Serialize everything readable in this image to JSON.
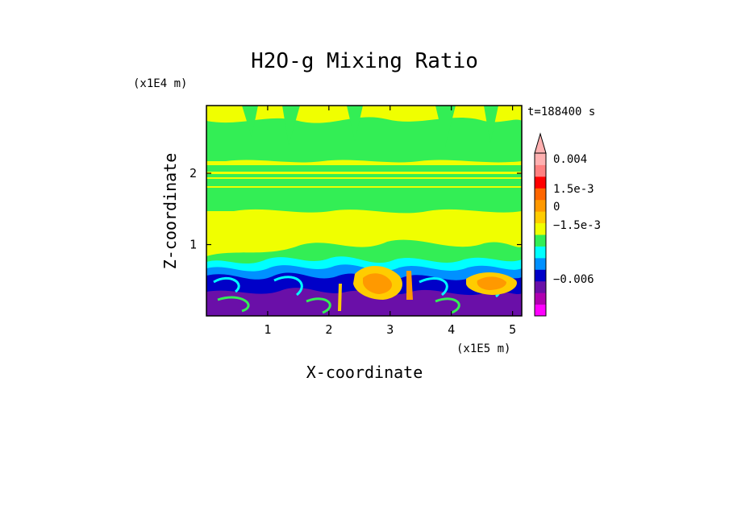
{
  "chart_data": {
    "type": "heatmap",
    "title": "H2O-g Mixing Ratio",
    "xlabel": "X-coordinate",
    "ylabel": "Z-coordinate",
    "x_scale_label": "(x1E5 m)",
    "y_scale_label": "(x1E4 m)",
    "time_label": "t=188400 s",
    "xlim": [
      0,
      5.15
    ],
    "ylim": [
      0,
      2.95
    ],
    "x_ticks": [
      1,
      2,
      3,
      4,
      5
    ],
    "y_ticks": [
      1,
      2
    ],
    "colorbar": {
      "tick_labels": [
        "0.004",
        "1.5e-3",
        "0",
        "−1.5e-3",
        "−0.006"
      ],
      "tick_values": [
        0.004,
        0.0015,
        0,
        -0.0015,
        -0.006
      ],
      "levels": [
        {
          "color": "#ff00ff",
          "value": -0.008
        },
        {
          "color": "#b000b0",
          "value": -0.006
        },
        {
          "color": "#6a0fa8",
          "value": -0.004
        },
        {
          "color": "#0000c8",
          "value": -0.002
        },
        {
          "color": "#0090ff",
          "value": -0.0015
        },
        {
          "color": "#00ffff",
          "value": -0.001
        },
        {
          "color": "#33ee55",
          "value": -0.0005
        },
        {
          "color": "#f0ff00",
          "value": 0
        },
        {
          "color": "#ffcc00",
          "value": 0.0005
        },
        {
          "color": "#ff9900",
          "value": 0.001
        },
        {
          "color": "#ff6600",
          "value": 0.0015
        },
        {
          "color": "#ff0000",
          "value": 0.002
        },
        {
          "color": "#ff8080",
          "value": 0.003
        },
        {
          "color": "#ffb0b0",
          "value": 0.004
        }
      ]
    },
    "regions": [
      {
        "z_range": [
          2.2,
          2.95
        ],
        "dominant": "yellow/green mix"
      },
      {
        "z_range": [
          1.55,
          2.2
        ],
        "dominant": "green with thin yellow bands near z=2.0"
      },
      {
        "z_range": [
          0.9,
          1.55
        ],
        "dominant": "yellow"
      },
      {
        "z_range": [
          0.5,
          0.9
        ],
        "dominant": "cyan/blue/green filaments"
      },
      {
        "z_range": [
          0,
          0.5
        ],
        "dominant": "blue/purple with orange cells near x=2.7 and x=4.6"
      }
    ]
  }
}
